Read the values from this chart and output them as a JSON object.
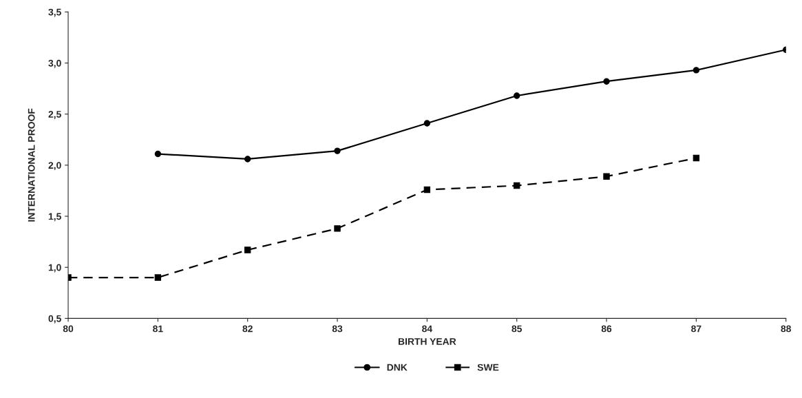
{
  "chart_data": {
    "type": "line",
    "xlabel": "BIRTH YEAR",
    "ylabel": "INTERNATIONAL PROOF",
    "xlim": [
      80,
      88
    ],
    "xticks": [
      80,
      81,
      82,
      83,
      84,
      85,
      86,
      87,
      88
    ],
    "ylim": [
      0.5,
      3.5
    ],
    "yticks": [
      {
        "value": 0.5,
        "label": "0,5"
      },
      {
        "value": 1.0,
        "label": "1,0"
      },
      {
        "value": 1.5,
        "label": "1,5"
      },
      {
        "value": 2.0,
        "label": "2,0"
      },
      {
        "value": 2.5,
        "label": "2,5"
      },
      {
        "value": 3.0,
        "label": "3,0"
      },
      {
        "value": 3.5,
        "label": "3,5"
      }
    ],
    "grid": false,
    "legend": "bottom",
    "series": [
      {
        "name": "DNK",
        "color": "#000000",
        "marker": "circle",
        "line_style": "solid",
        "x": [
          81,
          82,
          83,
          84,
          85,
          86,
          87,
          88
        ],
        "values": [
          2.11,
          2.06,
          2.14,
          2.41,
          2.68,
          2.82,
          2.93,
          3.13
        ]
      },
      {
        "name": "SWE",
        "color": "#000000",
        "marker": "square",
        "line_style": "dashed",
        "x": [
          80,
          81,
          82,
          83,
          84,
          85,
          86,
          87
        ],
        "values": [
          0.9,
          0.9,
          1.17,
          1.38,
          1.76,
          1.8,
          1.89,
          2.07
        ]
      }
    ]
  }
}
